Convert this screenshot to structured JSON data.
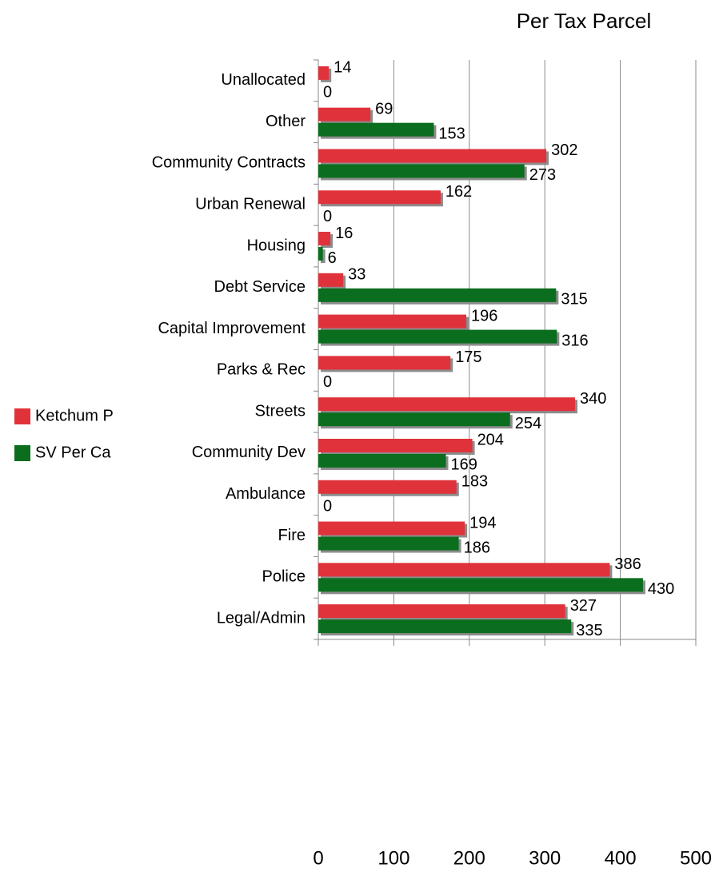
{
  "chart_data": {
    "type": "hbar",
    "title": "Per Tax Parcel",
    "categories": [
      "Unallocated",
      "Other",
      "Community Contracts",
      "Urban Renewal",
      "Housing",
      "Debt Service",
      "Capital Improvement",
      "Parks & Rec",
      "Streets",
      "Community Dev",
      "Ambulance",
      "Fire",
      "Police",
      "Legal/Admin"
    ],
    "series": [
      {
        "name": "Ketchum P",
        "color": "#e0323a",
        "values": [
          14,
          69,
          302,
          162,
          16,
          33,
          196,
          175,
          340,
          204,
          183,
          194,
          386,
          327
        ]
      },
      {
        "name": "SV Per Ca",
        "color": "#0a6e1e",
        "values": [
          0,
          153,
          273,
          0,
          6,
          315,
          316,
          0,
          254,
          169,
          0,
          186,
          430,
          335
        ]
      }
    ],
    "xlim": [
      0,
      500
    ],
    "xticks": [
      0,
      100,
      200,
      300,
      400,
      500
    ],
    "grid": true,
    "legend": "left"
  }
}
